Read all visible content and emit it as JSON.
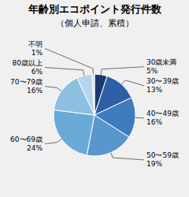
{
  "chart_data": {
    "type": "pie",
    "title": "年齢別エコポイント発行件数",
    "subtitle": "（個人申請、累積）",
    "categories": [
      "30歳未満",
      "30〜39歳",
      "40〜49歳",
      "50〜59歳",
      "60〜69歳",
      "70〜79歳",
      "80歳以上",
      "不明"
    ],
    "values": [
      5,
      13,
      16,
      19,
      24,
      16,
      6,
      1
    ],
    "value_labels": [
      "5%",
      "13%",
      "16%",
      "19%",
      "24%",
      "16%",
      "6%",
      "1%"
    ],
    "colors": [
      "#1a3a6b",
      "#2d5fa5",
      "#3f7bbf",
      "#5896cc",
      "#6aaad8",
      "#8dc0e0",
      "#b5d5eb",
      "#cce0f0"
    ],
    "data_labels": true
  }
}
